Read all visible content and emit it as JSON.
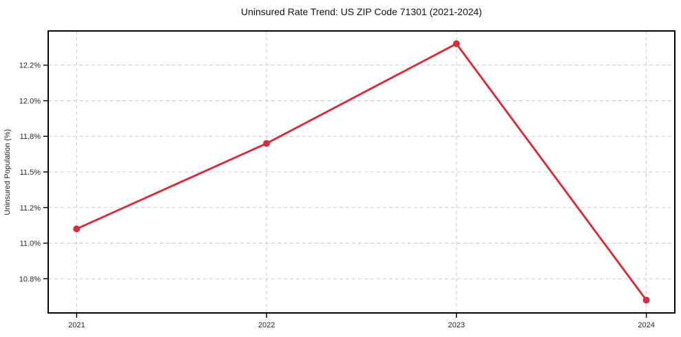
{
  "chart_data": {
    "type": "line",
    "title": "Uninsured Rate Trend: US ZIP Code 71301 (2021-2024)",
    "xlabel": "",
    "ylabel": "Uninsured Population (%)",
    "x": [
      2021,
      2022,
      2023,
      2024
    ],
    "values": [
      11.1,
      11.7,
      12.4,
      10.6
    ],
    "x_tick_labels": [
      "2021",
      "2022",
      "2023",
      "2024"
    ],
    "y_tick_values": [
      10.75,
      11.0,
      11.25,
      11.5,
      11.75,
      12.0,
      12.25
    ],
    "y_tick_labels": [
      "10.8%",
      "11.0%",
      "11.2%",
      "11.5%",
      "11.8%",
      "12.0%",
      "12.2%"
    ],
    "xlim": [
      2020.85,
      2024.15
    ],
    "ylim": [
      10.51,
      12.49
    ],
    "grid": true,
    "grid_style": "dashed",
    "legend_position": "none",
    "colors": {
      "line": "#d22f3f",
      "grid": "#c9c9c9",
      "spine": "#000000",
      "tick_label": "#262626",
      "title": "#111111",
      "background": "#ffffff"
    }
  }
}
